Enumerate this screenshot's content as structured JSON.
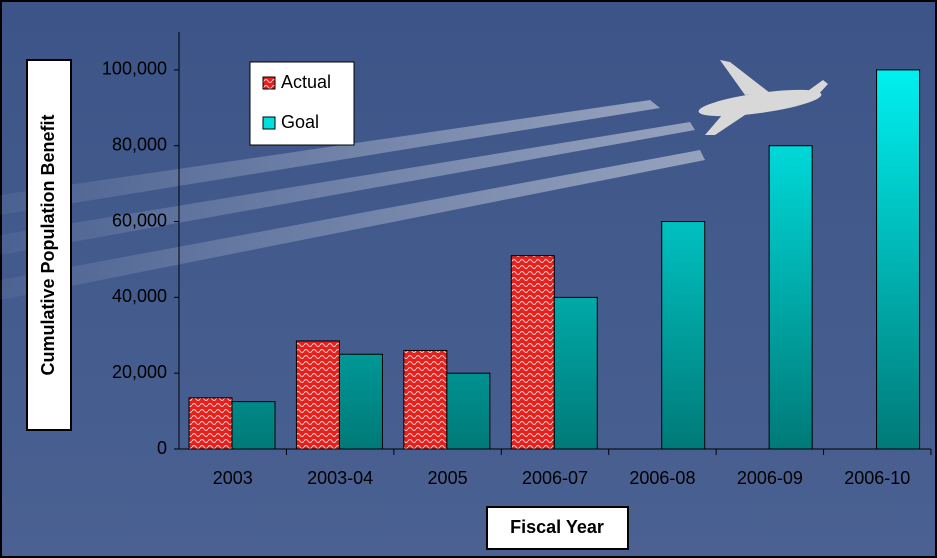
{
  "chart_data": {
    "type": "bar",
    "x_label": "Fiscal Year",
    "y_label": "Cumulative Population Benefit",
    "categories": [
      "2003",
      "2003-04",
      "2005",
      "2006-07",
      "2006-08",
      "2006-09",
      "2006-10"
    ],
    "series": [
      {
        "name": "Actual",
        "color": "#e8201c",
        "values": [
          13500,
          28500,
          26000,
          51000,
          null,
          null,
          null
        ]
      },
      {
        "name": "Goal",
        "color": "#00f0f0",
        "values": [
          12500,
          25000,
          20000,
          40000,
          60000,
          80000,
          100000
        ]
      }
    ],
    "ylim": [
      0,
      110000
    ],
    "yticks": [
      0,
      {
        "value": 20000,
        "label": "20,000"
      },
      {
        "value": 40000,
        "label": "40,000"
      },
      {
        "value": 60000,
        "label": "60,000"
      },
      {
        "value": 80000,
        "label": "80,000"
      },
      {
        "value": 100000,
        "label": "100,000"
      }
    ],
    "grid": false,
    "legend": "top-left"
  }
}
